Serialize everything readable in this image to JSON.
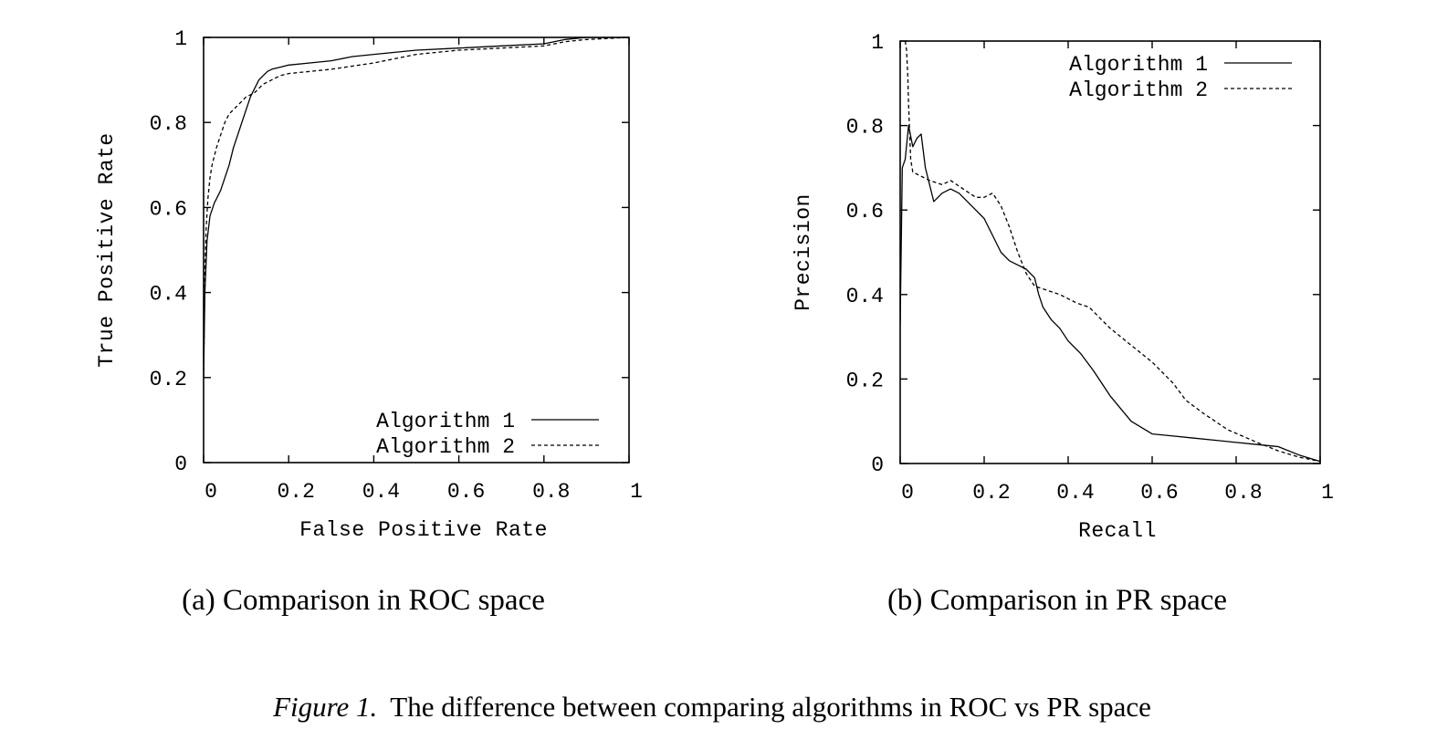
{
  "figure": {
    "caption_label": "Figure 1.",
    "caption_text": "The difference between comparing algorithms in ROC vs PR space"
  },
  "chart_data": [
    {
      "type": "line",
      "subcaption": "(a) Comparison in ROC space",
      "xlabel": "False Positive Rate",
      "ylabel": "True Positive Rate",
      "xlim": [
        0,
        1
      ],
      "ylim": [
        0,
        1
      ],
      "xticks": [
        "0",
        "0.2",
        "0.4",
        "0.6",
        "0.8",
        "1"
      ],
      "yticks": [
        "0",
        "0.2",
        "0.4",
        "0.6",
        "0.8",
        "1"
      ],
      "legend_position": "bottom-right",
      "series": [
        {
          "name": "Algorithm 1",
          "style": "solid",
          "x": [
            0,
            0.003,
            0.008,
            0.015,
            0.025,
            0.04,
            0.05,
            0.06,
            0.07,
            0.08,
            0.09,
            0.1,
            0.11,
            0.12,
            0.13,
            0.14,
            0.15,
            0.16,
            0.18,
            0.2,
            0.25,
            0.3,
            0.35,
            0.4,
            0.5,
            0.6,
            0.7,
            0.8,
            0.85,
            0.9,
            1.0
          ],
          "y": [
            0.2,
            0.4,
            0.52,
            0.58,
            0.61,
            0.64,
            0.67,
            0.7,
            0.74,
            0.77,
            0.8,
            0.83,
            0.86,
            0.88,
            0.9,
            0.91,
            0.92,
            0.925,
            0.93,
            0.935,
            0.94,
            0.945,
            0.955,
            0.96,
            0.97,
            0.975,
            0.98,
            0.985,
            0.995,
            1.0,
            1.0
          ]
        },
        {
          "name": "Algorithm 2",
          "style": "dashed",
          "x": [
            0,
            0.003,
            0.006,
            0.01,
            0.015,
            0.02,
            0.03,
            0.04,
            0.05,
            0.06,
            0.08,
            0.1,
            0.12,
            0.14,
            0.16,
            0.18,
            0.2,
            0.25,
            0.3,
            0.4,
            0.5,
            0.6,
            0.7,
            0.8,
            0.85,
            0.9,
            1.0
          ],
          "y": [
            0.2,
            0.45,
            0.55,
            0.62,
            0.67,
            0.7,
            0.74,
            0.77,
            0.8,
            0.82,
            0.84,
            0.86,
            0.87,
            0.89,
            0.9,
            0.91,
            0.915,
            0.92,
            0.925,
            0.94,
            0.96,
            0.97,
            0.975,
            0.98,
            0.99,
            0.995,
            1.0
          ]
        }
      ]
    },
    {
      "type": "line",
      "subcaption": "(b) Comparison in PR space",
      "xlabel": "Recall",
      "ylabel": "Precision",
      "xlim": [
        0,
        1
      ],
      "ylim": [
        0,
        1
      ],
      "xticks": [
        "0",
        "0.2",
        "0.4",
        "0.6",
        "0.8",
        "1"
      ],
      "yticks": [
        "0",
        "0.2",
        "0.4",
        "0.6",
        "0.8",
        "1"
      ],
      "legend_position": "top-right",
      "series": [
        {
          "name": "Algorithm 1",
          "style": "solid",
          "x": [
            0,
            0.005,
            0.012,
            0.02,
            0.03,
            0.04,
            0.05,
            0.06,
            0.07,
            0.08,
            0.09,
            0.1,
            0.12,
            0.14,
            0.16,
            0.18,
            0.2,
            0.22,
            0.24,
            0.26,
            0.28,
            0.3,
            0.32,
            0.33,
            0.34,
            0.36,
            0.38,
            0.4,
            0.43,
            0.46,
            0.5,
            0.55,
            0.6,
            0.65,
            0.7,
            0.75,
            0.8,
            0.85,
            0.9,
            0.95,
            1.0
          ],
          "y": [
            0.33,
            0.7,
            0.72,
            0.8,
            0.75,
            0.77,
            0.78,
            0.7,
            0.66,
            0.62,
            0.63,
            0.64,
            0.65,
            0.64,
            0.62,
            0.6,
            0.58,
            0.54,
            0.5,
            0.48,
            0.47,
            0.46,
            0.44,
            0.4,
            0.37,
            0.34,
            0.32,
            0.29,
            0.26,
            0.22,
            0.16,
            0.1,
            0.07,
            0.065,
            0.06,
            0.055,
            0.05,
            0.045,
            0.04,
            0.02,
            0.005
          ]
        },
        {
          "name": "Algorithm 2",
          "style": "dashed",
          "x": [
            0.012,
            0.015,
            0.018,
            0.02,
            0.025,
            0.03,
            0.05,
            0.07,
            0.1,
            0.12,
            0.15,
            0.18,
            0.2,
            0.22,
            0.24,
            0.26,
            0.28,
            0.3,
            0.32,
            0.35,
            0.38,
            0.4,
            0.42,
            0.45,
            0.48,
            0.5,
            0.55,
            0.6,
            0.65,
            0.68,
            0.72,
            0.78,
            0.85,
            0.9,
            0.95,
            1.0
          ],
          "y": [
            1.0,
            0.98,
            0.92,
            0.85,
            0.72,
            0.69,
            0.68,
            0.67,
            0.66,
            0.67,
            0.65,
            0.63,
            0.63,
            0.64,
            0.61,
            0.56,
            0.5,
            0.45,
            0.42,
            0.41,
            0.4,
            0.39,
            0.38,
            0.37,
            0.34,
            0.32,
            0.28,
            0.24,
            0.19,
            0.15,
            0.12,
            0.08,
            0.05,
            0.03,
            0.015,
            0.005
          ]
        }
      ]
    }
  ]
}
